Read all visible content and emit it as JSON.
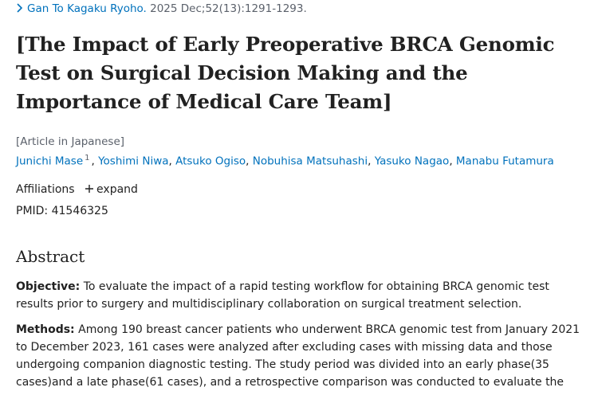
{
  "citation": {
    "journal": "Gan To Kagaku Ryoho.",
    "details": "2025 Dec;52(13):1291-1293."
  },
  "title": "[The Impact of Early Preoperative BRCA Genomic Test on Surgical Decision Making and the Importance of Medical Care Team]",
  "language_note": "[Article in Japanese]",
  "authors": {
    "separator": ",",
    "list": [
      {
        "name": "Junichi Mase",
        "sup": "1"
      },
      {
        "name": "Yoshimi Niwa"
      },
      {
        "name": "Atsuko Ogiso"
      },
      {
        "name": "Nobuhisa Matsuhashi"
      },
      {
        "name": "Yasuko Nagao"
      },
      {
        "name": "Manabu Futamura"
      }
    ]
  },
  "affiliations": {
    "label": "Affiliations",
    "toggle": "expand"
  },
  "pmid": {
    "label": "PMID:",
    "value": "41546325"
  },
  "abstract": {
    "heading": "Abstract",
    "paragraphs": [
      {
        "label": "Objective:",
        "text": "To evaluate the impact of a rapid testing workflow for obtaining BRCA genomic test results prior to surgery and multidisciplinary collaboration on surgical treatment selection."
      },
      {
        "label": "Methods:",
        "text": "Among 190 breast cancer patients who underwent BRCA genomic test from January 2021 to December 2023, 161 cases were analyzed after excluding cases with missing data and those undergoing companion diagnostic testing. The study period was divided into an early phase(35 cases)and a late phase(61 cases), and a retrospective comparison was conducted to evaluate the"
      }
    ]
  }
}
